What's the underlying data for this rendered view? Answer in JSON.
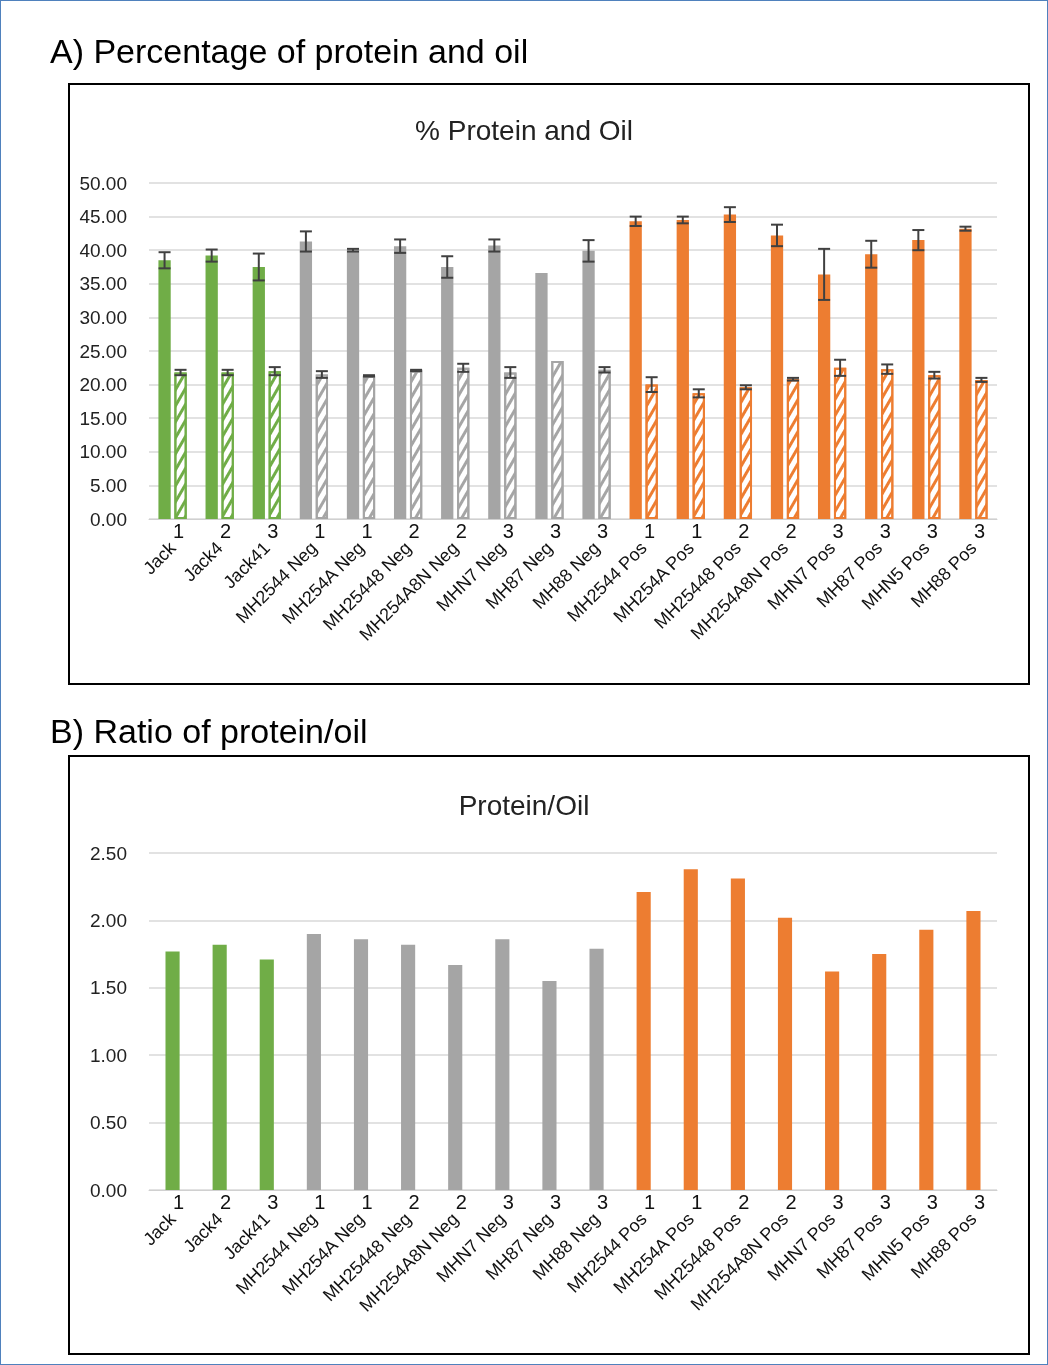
{
  "chart_data": [
    {
      "type": "bar",
      "title": "A) Percentage of protein and oil",
      "subtitle": "% Protein and Oil",
      "categories": [
        "Jack",
        "Jack4",
        "Jack41",
        "MH2544 Neg",
        "MH254A Neg",
        "MH25448 Neg",
        "MH254A8N Neg",
        "MHN7 Neg",
        "MH87 Neg",
        "MH88 Neg",
        "MH2544 Pos",
        "MH254A Pos",
        "MH25448 Pos",
        "MH254A8N Pos",
        "MHN7 Pos",
        "MH87 Pos",
        "MHN5 Pos",
        "MH88 Pos"
      ],
      "series": [
        {
          "colors": [
            "#70ad47",
            "#70ad47",
            "#70ad47",
            "#a5a5a5",
            "#a5a5a5",
            "#a5a5a5",
            "#a5a5a5",
            "#a5a5a5",
            "#a5a5a5",
            "#a5a5a5",
            "#ed7d31",
            "#ed7d31",
            "#ed7d31",
            "#ed7d31",
            "#ed7d31",
            "#ed7d31",
            "#ed7d31",
            "#ed7d31"
          ],
          "values": [
            38.5,
            39.2,
            37.5,
            41.3,
            40.0,
            40.6,
            37.5,
            40.7,
            36.6,
            39.9,
            44.3,
            44.5,
            45.3,
            42.2,
            36.4,
            39.4,
            41.5,
            43.2
          ],
          "errors": [
            1.2,
            0.9,
            2.0,
            1.5,
            0.2,
            1.0,
            1.6,
            0.9,
            null,
            1.6,
            0.7,
            0.5,
            1.1,
            1.6,
            3.8,
            2.0,
            1.5,
            0.3
          ]
        },
        {
          "colors": [
            "#70ad47",
            "#70ad47",
            "#70ad47",
            "#a5a5a5",
            "#a5a5a5",
            "#a5a5a5",
            "#a5a5a5",
            "#a5a5a5",
            "#a5a5a5",
            "#a5a5a5",
            "#ed7d31",
            "#ed7d31",
            "#ed7d31",
            "#ed7d31",
            "#ed7d31",
            "#ed7d31",
            "#ed7d31",
            "#ed7d31"
          ],
          "values": [
            21.8,
            21.8,
            22.0,
            21.5,
            21.3,
            22.1,
            22.5,
            21.8,
            23.5,
            22.2,
            20.0,
            18.7,
            19.6,
            20.8,
            22.5,
            22.3,
            21.4,
            20.7
          ],
          "errors": [
            0.4,
            0.4,
            0.6,
            0.5,
            0.1,
            0.1,
            0.6,
            0.8,
            null,
            0.4,
            1.1,
            0.6,
            0.3,
            0.2,
            1.2,
            0.7,
            0.5,
            0.3
          ]
        }
      ],
      "ylim": [
        0,
        50
      ],
      "yticks": [
        {
          "value": 0,
          "label": "0.00"
        },
        {
          "value": 5,
          "label": "5.00"
        },
        {
          "value": 10,
          "label": "10.00"
        },
        {
          "value": 15,
          "label": "15.00"
        },
        {
          "value": 20,
          "label": "20.00"
        },
        {
          "value": 25,
          "label": "25.00"
        },
        {
          "value": 30,
          "label": "30.00"
        },
        {
          "value": 35,
          "label": "35.00"
        },
        {
          "value": 40,
          "label": "40.00"
        },
        {
          "value": 45,
          "label": "45.00"
        },
        {
          "value": 50,
          "label": "50.00"
        }
      ],
      "grid": "y",
      "annotations": [
        "1",
        "2",
        "3",
        "1",
        "1",
        "2",
        "2",
        "3",
        "3",
        "3",
        "1",
        "1",
        "2",
        "2",
        "3",
        "3",
        "3",
        "3"
      ]
    },
    {
      "type": "bar",
      "title": "B) Ratio of protein/oil",
      "subtitle": "Protein/Oil",
      "categories": [
        "Jack",
        "Jack4",
        "Jack41",
        "MH2544 Neg",
        "MH254A Neg",
        "MH25448 Neg",
        "MH254A8N Neg",
        "MHN7 Neg",
        "MH87 Neg",
        "MH88 Neg",
        "MH2544 Pos",
        "MH254A Pos",
        "MH25448 Pos",
        "MH254A8N Pos",
        "MHN7 Pos",
        "MH87 Pos",
        "MHN5 Pos",
        "MH88 Pos"
      ],
      "series": [
        {
          "colors": [
            "#70ad47",
            "#70ad47",
            "#70ad47",
            "#a5a5a5",
            "#a5a5a5",
            "#a5a5a5",
            "#a5a5a5",
            "#a5a5a5",
            "#a5a5a5",
            "#a5a5a5",
            "#ed7d31",
            "#ed7d31",
            "#ed7d31",
            "#ed7d31",
            "#ed7d31",
            "#ed7d31",
            "#ed7d31",
            "#ed7d31"
          ],
          "values": [
            1.77,
            1.82,
            1.71,
            1.9,
            1.86,
            1.82,
            1.67,
            1.86,
            1.55,
            1.79,
            2.21,
            2.38,
            2.31,
            2.02,
            1.62,
            1.75,
            1.93,
            2.07
          ]
        }
      ],
      "ylim": [
        0,
        2.5
      ],
      "yticks": [
        {
          "value": 0,
          "label": "0.00"
        },
        {
          "value": 0.5,
          "label": "0.50"
        },
        {
          "value": 1,
          "label": "1.00"
        },
        {
          "value": 1.5,
          "label": "1.50"
        },
        {
          "value": 2,
          "label": "2.00"
        },
        {
          "value": 2.5,
          "label": "2.50"
        }
      ],
      "grid": "y",
      "annotations": [
        "1",
        "2",
        "3",
        "1",
        "1",
        "2",
        "2",
        "3",
        "3",
        "3",
        "1",
        "1",
        "2",
        "2",
        "3",
        "3",
        "3",
        "3"
      ]
    }
  ]
}
